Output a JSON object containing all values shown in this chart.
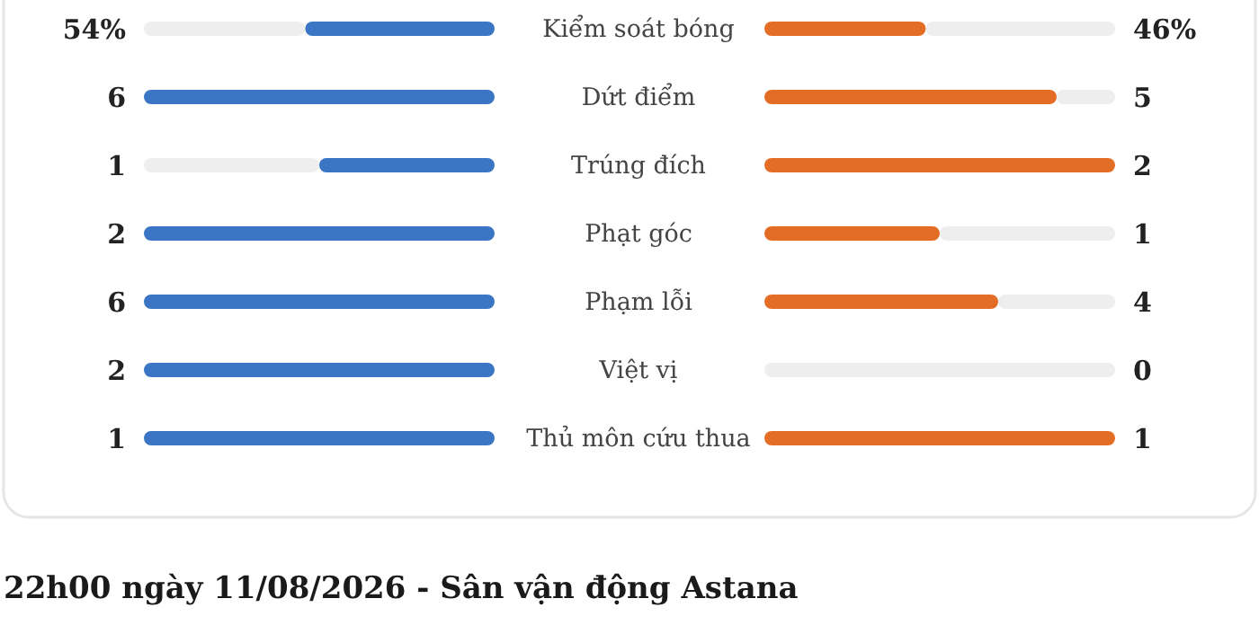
{
  "chart_data": {
    "type": "other",
    "categories": [
      "Kiểm soát bóng",
      "Dứt điểm",
      "Trúng đích",
      "Phạt góc",
      "Phạm lỗi",
      "Việt vị",
      "Thủ môn cứu thua"
    ],
    "series": [
      {
        "color": "#3a76c4",
        "values": [
          54,
          6,
          1,
          2,
          6,
          2,
          1
        ],
        "value_labels": [
          "54%",
          "6",
          "1",
          "2",
          "6",
          "2",
          "1"
        ]
      },
      {
        "color": "#e46d26",
        "values": [
          46,
          5,
          2,
          1,
          4,
          0,
          1
        ],
        "value_labels": [
          "46%",
          "5",
          "2",
          "1",
          "4",
          "0",
          "1"
        ]
      }
    ],
    "annotations": [
      "22h00 ngày 11/08/2026 - Sân vận động Astana"
    ]
  }
}
